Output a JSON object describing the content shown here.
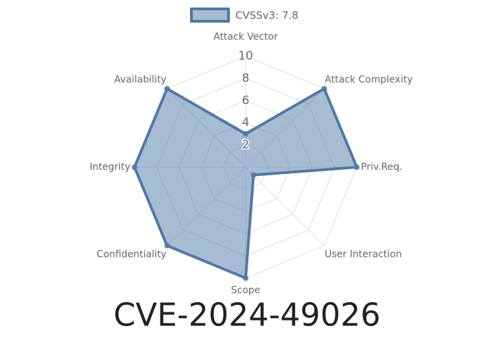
{
  "chart_data": {
    "type": "radar",
    "title": "CVE-2024-49026",
    "categories": [
      "Attack Vector",
      "Attack Complexity",
      "Priv.Req.",
      "User Interaction",
      "Scope",
      "Confidentiality",
      "Integrity",
      "Availability"
    ],
    "series": [
      {
        "name": "CVSSv3: 7.8",
        "color": "#4e79a7",
        "values": [
          3,
          10,
          10,
          1,
          10,
          10,
          10,
          10
        ]
      }
    ],
    "rlim": [
      0,
      10
    ],
    "rticks": [
      2,
      4,
      6,
      8,
      10
    ],
    "grid": true,
    "legend": "top"
  }
}
